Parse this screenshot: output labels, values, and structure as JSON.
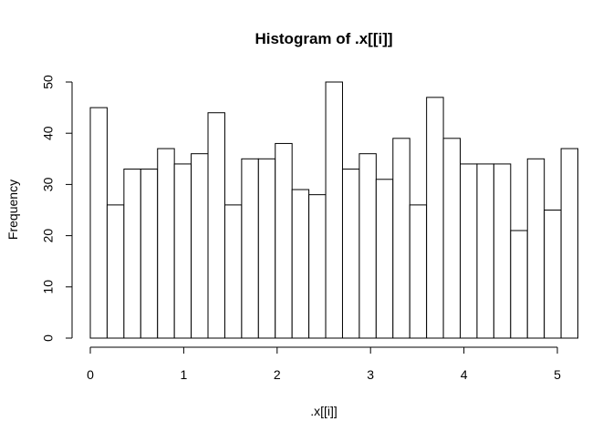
{
  "chart_data": {
    "type": "bar",
    "title": "Histogram of .x[[i]]",
    "xlabel": ".x[[i]]",
    "ylabel": "Frequency",
    "x_ticks": [
      "0",
      "1",
      "2",
      "3",
      "4",
      "5"
    ],
    "y_ticks": [
      "0",
      "10",
      "20",
      "30",
      "40",
      "50"
    ],
    "xlim": [
      0,
      5
    ],
    "ylim": [
      0,
      50
    ],
    "bin_width": 0.18,
    "values": [
      45,
      26,
      33,
      33,
      37,
      34,
      36,
      44,
      26,
      35,
      35,
      38,
      29,
      28,
      50,
      33,
      36,
      31,
      39,
      26,
      47,
      39,
      34,
      34,
      34,
      21,
      35,
      25,
      37
    ],
    "grid": false,
    "legend": "none",
    "bar_fill": "#ffffff",
    "bar_stroke": "#000000"
  }
}
